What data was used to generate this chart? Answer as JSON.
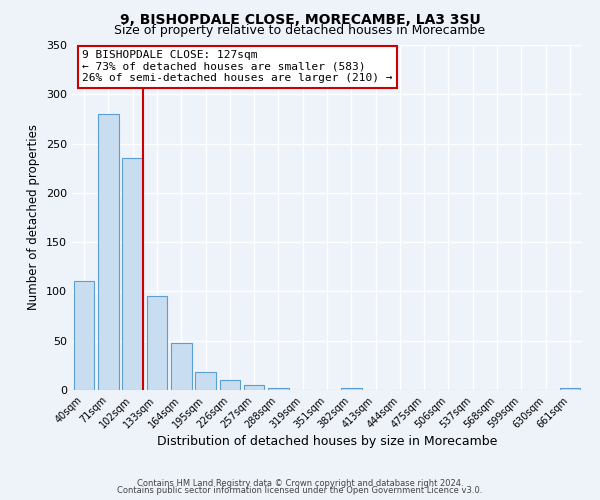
{
  "title1": "9, BISHOPDALE CLOSE, MORECAMBE, LA3 3SU",
  "title2": "Size of property relative to detached houses in Morecambe",
  "xlabel": "Distribution of detached houses by size in Morecambe",
  "ylabel": "Number of detached properties",
  "bar_labels": [
    "40sqm",
    "71sqm",
    "102sqm",
    "133sqm",
    "164sqm",
    "195sqm",
    "226sqm",
    "257sqm",
    "288sqm",
    "319sqm",
    "351sqm",
    "382sqm",
    "413sqm",
    "444sqm",
    "475sqm",
    "506sqm",
    "537sqm",
    "568sqm",
    "599sqm",
    "630sqm",
    "661sqm"
  ],
  "bar_values": [
    111,
    280,
    235,
    95,
    48,
    18,
    10,
    5,
    2,
    0,
    0,
    2,
    0,
    0,
    0,
    0,
    0,
    0,
    0,
    0,
    2
  ],
  "bar_color": "#c9ddf0",
  "bar_edge_color": "#5a9fd4",
  "vline_color": "#cc0000",
  "ylim": [
    0,
    350
  ],
  "yticks": [
    0,
    50,
    100,
    150,
    200,
    250,
    300,
    350
  ],
  "annotation_title": "9 BISHOPDALE CLOSE: 127sqm",
  "annotation_line1": "← 73% of detached houses are smaller (583)",
  "annotation_line2": "26% of semi-detached houses are larger (210) →",
  "annotation_box_color": "#ffffff",
  "annotation_border_color": "#cc0000",
  "footer1": "Contains HM Land Registry data © Crown copyright and database right 2024.",
  "footer2": "Contains public sector information licensed under the Open Government Licence v3.0.",
  "bg_color": "#eef2f9",
  "grid_color": "#ffffff",
  "title_fontsize": 10,
  "subtitle_fontsize": 9
}
